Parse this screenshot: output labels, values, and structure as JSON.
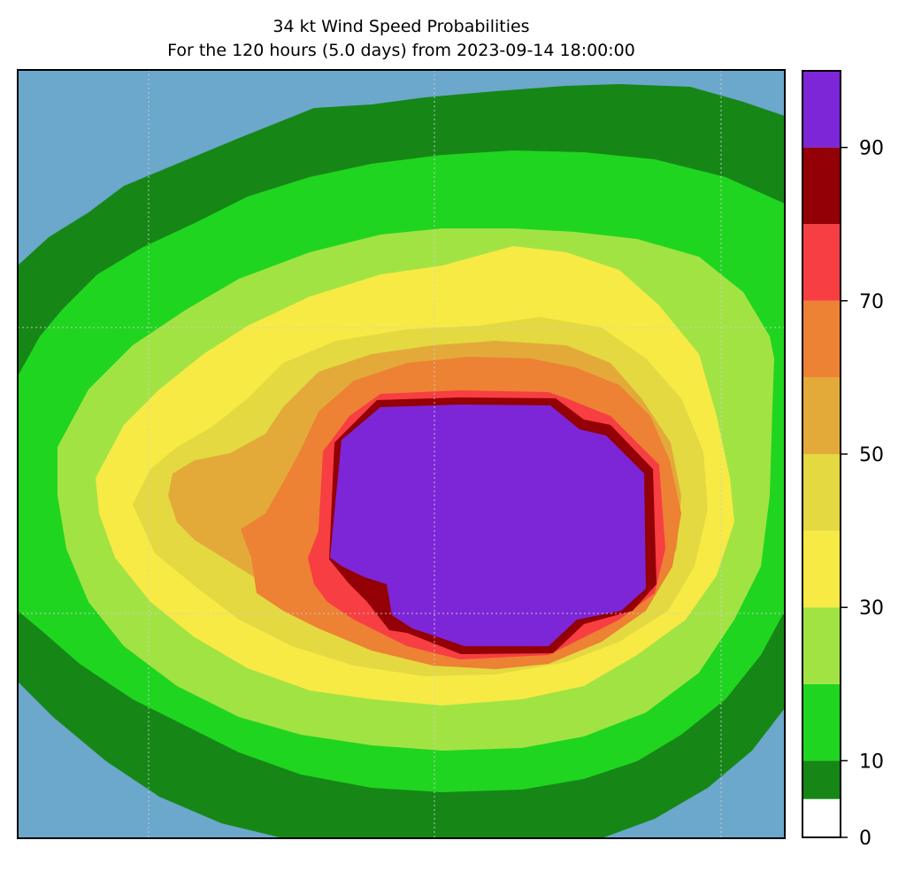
{
  "chart_data": {
    "type": "heatmap",
    "title": "34 kt Wind Speed Probabilities",
    "subtitle": "For the 120 hours (5.0 days) from 2023-09-14 18:00:00",
    "xlabel": "",
    "ylabel": "",
    "grid": true,
    "background_color": "#6ca7cc",
    "colorbar": {
      "min": 0,
      "max": 100,
      "ticks": [
        0,
        10,
        30,
        50,
        70,
        90
      ],
      "tick_labels": [
        "0",
        "10",
        "30",
        "50",
        "70",
        "90"
      ],
      "levels": [
        {
          "from": 0,
          "to": 5,
          "color": "#ffffff"
        },
        {
          "from": 5,
          "to": 10,
          "color": "#168716"
        },
        {
          "from": 10,
          "to": 20,
          "color": "#20d520"
        },
        {
          "from": 20,
          "to": 30,
          "color": "#a2e344"
        },
        {
          "from": 30,
          "to": 40,
          "color": "#f7ea45"
        },
        {
          "from": 40,
          "to": 50,
          "color": "#e4d941"
        },
        {
          "from": 50,
          "to": 60,
          "color": "#e3aa3a"
        },
        {
          "from": 60,
          "to": 70,
          "color": "#ed8134"
        },
        {
          "from": 70,
          "to": 80,
          "color": "#f73e42"
        },
        {
          "from": 80,
          "to": 90,
          "color": "#930005"
        },
        {
          "from": 90,
          "to": 100,
          "color": "#7d26d8"
        }
      ]
    }
  }
}
